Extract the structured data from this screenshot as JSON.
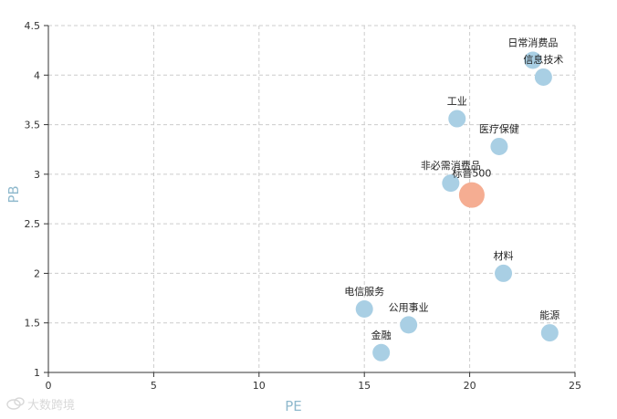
{
  "chart_data": {
    "type": "scatter",
    "title": "",
    "xlabel": "PE",
    "ylabel": "PB",
    "xlim": [
      0,
      25
    ],
    "ylim": [
      1,
      4.5
    ],
    "x_ticks": [
      "0",
      "5",
      "10",
      "15",
      "20",
      "25"
    ],
    "y_ticks": [
      "1",
      "1.5",
      "2",
      "2.5",
      "3",
      "3.5",
      "4",
      "4.5"
    ],
    "grid": true,
    "legend": "none",
    "points": [
      {
        "label": "日常消费品",
        "x": 23.0,
        "y": 4.15,
        "highlight": false
      },
      {
        "label": "信息技术",
        "x": 23.5,
        "y": 3.98,
        "highlight": false
      },
      {
        "label": "工业",
        "x": 19.4,
        "y": 3.56,
        "highlight": false
      },
      {
        "label": "医疗保健",
        "x": 21.4,
        "y": 3.28,
        "highlight": false
      },
      {
        "label": "非必需消费品",
        "x": 19.1,
        "y": 2.91,
        "highlight": false
      },
      {
        "label": "标普500",
        "x": 20.1,
        "y": 2.79,
        "highlight": true
      },
      {
        "label": "材料",
        "x": 21.6,
        "y": 2.0,
        "highlight": false
      },
      {
        "label": "电信服务",
        "x": 15.0,
        "y": 1.64,
        "highlight": false
      },
      {
        "label": "公用事业",
        "x": 17.1,
        "y": 1.48,
        "highlight": false
      },
      {
        "label": "能源",
        "x": 23.8,
        "y": 1.4,
        "highlight": false
      },
      {
        "label": "金融",
        "x": 15.8,
        "y": 1.2,
        "highlight": false
      }
    ]
  },
  "colors": {
    "point": "#a9cfe4",
    "highlight": "#f5ad92",
    "axis_title": "#8fb9cd",
    "grid": "#cccccc",
    "axis": "#333333"
  },
  "watermark": {
    "text": "大数跨境",
    "icon": "logo-icon"
  }
}
